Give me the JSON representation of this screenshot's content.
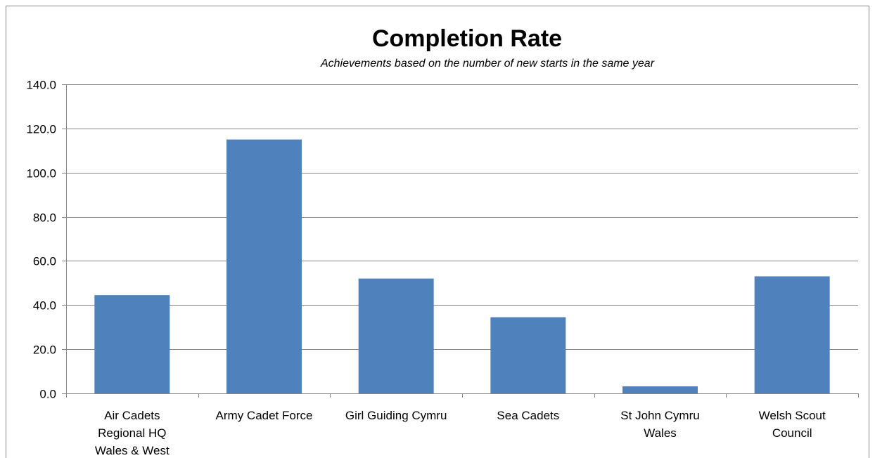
{
  "chart_data": {
    "type": "bar",
    "title": "Completion Rate",
    "subtitle": "Achievements based on the number of new starts in the same year",
    "xlabel": "",
    "ylabel": "",
    "categories": [
      [
        "Air Cadets",
        "Regional HQ",
        "Wales & West"
      ],
      [
        "Army Cadet Force"
      ],
      [
        "Girl Guiding Cymru"
      ],
      [
        "Sea Cadets"
      ],
      [
        "St John Cymru",
        "Wales"
      ],
      [
        "Welsh Scout",
        "Council"
      ]
    ],
    "values": [
      44.5,
      115.0,
      52.0,
      34.5,
      3.2,
      53.0
    ],
    "ylim": [
      0,
      140
    ],
    "yticks": [
      "0.0",
      "20.0",
      "40.0",
      "60.0",
      "80.0",
      "100.0",
      "120.0",
      "140.0"
    ],
    "grid": true,
    "legend": "none",
    "bar_color": "#4F81BD"
  }
}
